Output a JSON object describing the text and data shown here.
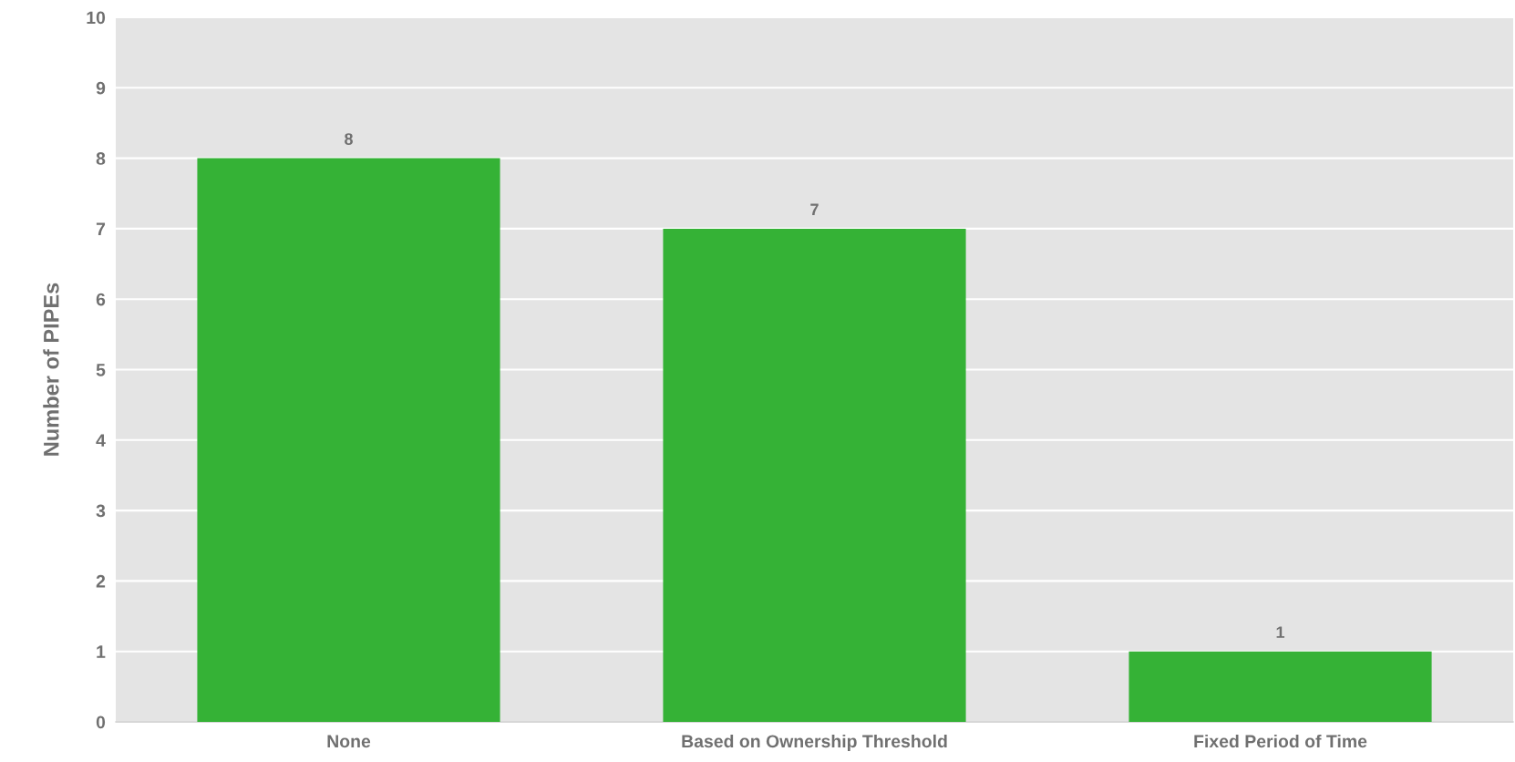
{
  "chart_data": {
    "type": "bar",
    "ylabel": "Number of PIPEs",
    "categories": [
      "None",
      "Based on Ownership Threshold",
      "Fixed Period of Time"
    ],
    "values": [
      8,
      7,
      1
    ],
    "color": "#35b236",
    "ylim": [
      0,
      10
    ],
    "yticks": [
      0,
      1,
      2,
      3,
      4,
      5,
      6,
      7,
      8,
      9,
      10
    ],
    "grid": "y",
    "data_labels": true
  }
}
